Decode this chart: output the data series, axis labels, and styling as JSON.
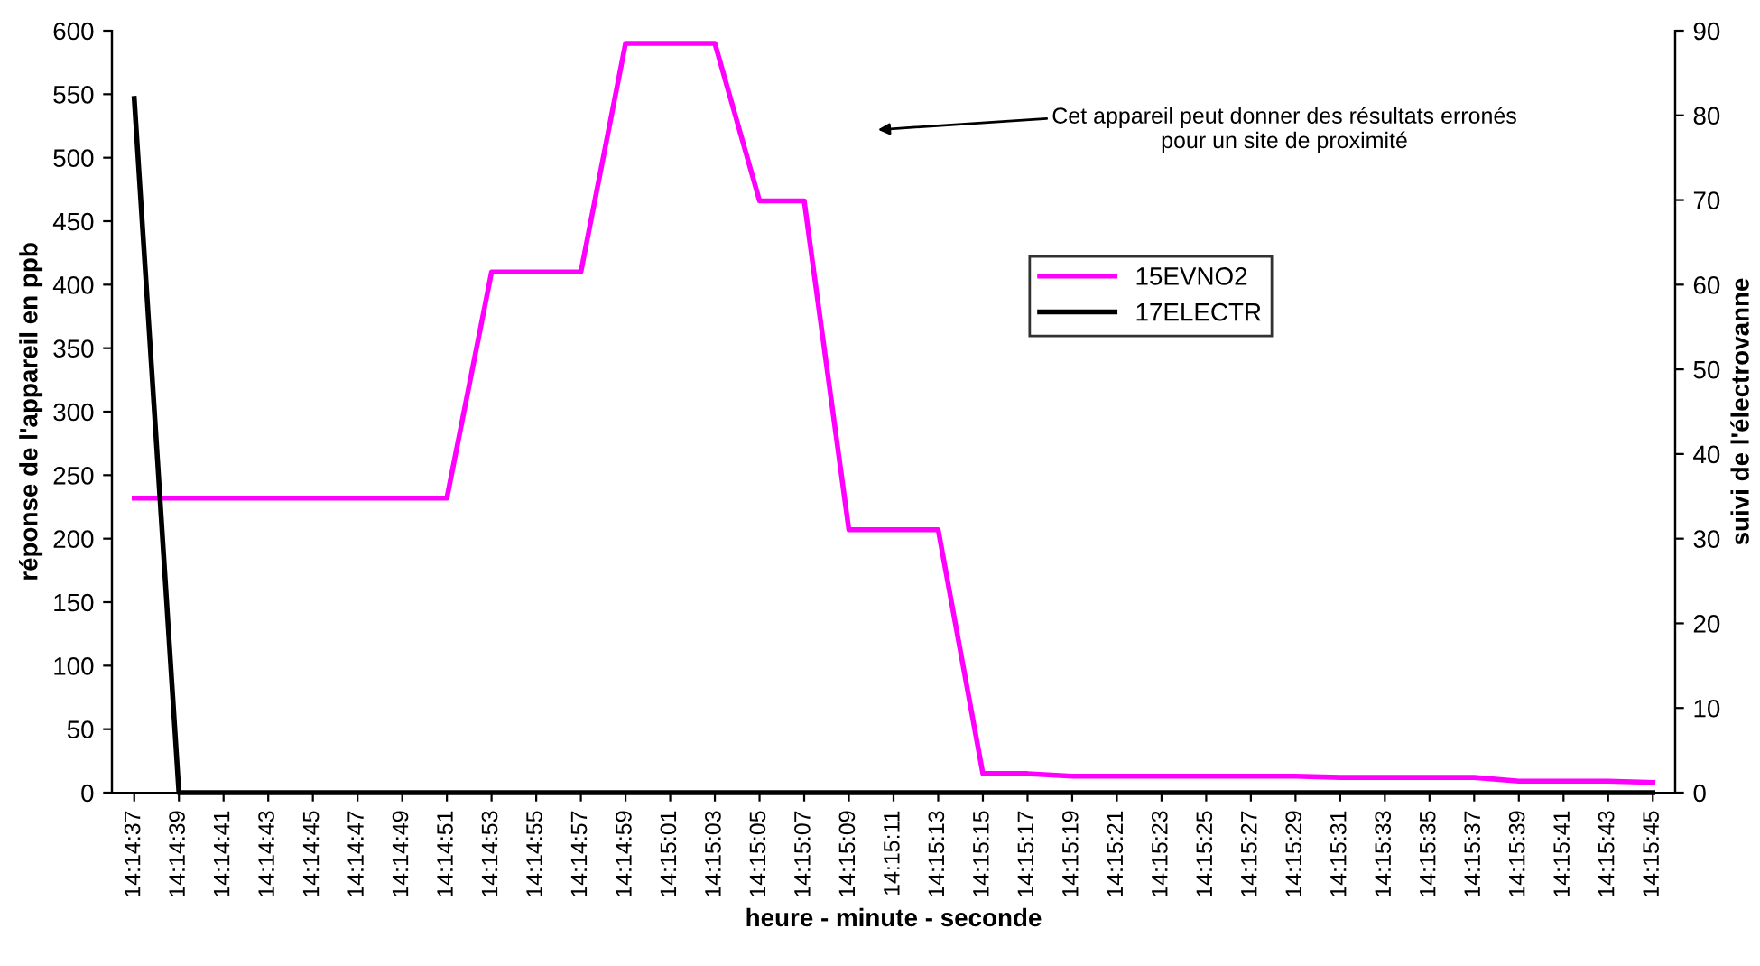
{
  "chart_data": {
    "type": "line",
    "xlabel": "heure - minute - seconde",
    "ylabel": "réponse de l'appareil en ppb",
    "y2label": "suivi de l'électrovanne",
    "categories": [
      "14:14:37",
      "14:14:39",
      "14:14:41",
      "14:14:43",
      "14:14:45",
      "14:14:47",
      "14:14:49",
      "14:14:51",
      "14:14:53",
      "14:14:55",
      "14:14:57",
      "14:14:59",
      "14:15:01",
      "14:15:03",
      "14:15:05",
      "14:15:07",
      "14:15:09",
      "14:15:11",
      "14:15:13",
      "14:15:15",
      "14:15:17",
      "14:15:19",
      "14:15:21",
      "14:15:23",
      "14:15:25",
      "14:15:27",
      "14:15:29",
      "14:15:31",
      "14:15:33",
      "14:15:35",
      "14:15:37",
      "14:15:39",
      "14:15:41",
      "14:15:43",
      "14:15:45"
    ],
    "series": [
      {
        "name": "15EVNO2",
        "color": "#ff00ff",
        "values": [
          232,
          232,
          232,
          232,
          232,
          232,
          232,
          232,
          410,
          410,
          410,
          590,
          590,
          590,
          466,
          466,
          207,
          207,
          207,
          15,
          15,
          13,
          13,
          13,
          13,
          13,
          13,
          12,
          12,
          12,
          12,
          9,
          9,
          9,
          8
        ]
      },
      {
        "name": "17ELECTR",
        "color": "#000000",
        "axis": "y2",
        "values": [
          82,
          0,
          0,
          0,
          0,
          0,
          0,
          0,
          0,
          0,
          0,
          0,
          0,
          0,
          0,
          0,
          0,
          0,
          0,
          0,
          0,
          0,
          0,
          0,
          0,
          0,
          0,
          0,
          0,
          0,
          0,
          0,
          0,
          0,
          0
        ]
      }
    ],
    "ylim": [
      0,
      600
    ],
    "yticks": [
      0,
      50,
      100,
      150,
      200,
      250,
      300,
      350,
      400,
      450,
      500,
      550,
      600
    ],
    "y2lim": [
      0,
      90
    ],
    "y2ticks": [
      0,
      10,
      20,
      30,
      40,
      50,
      60,
      70,
      80,
      90
    ],
    "annotations": [
      "Cet appareil peut donner des résultats erronés\npour un site de proximité"
    ],
    "legend": "top right",
    "grid": false,
    "marker": "none",
    "line_style": "solid"
  }
}
